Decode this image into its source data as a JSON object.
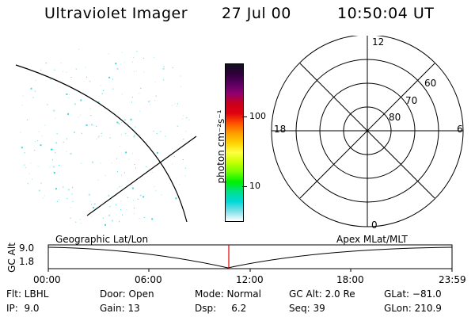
{
  "header": {
    "instrument": "Ultraviolet Imager",
    "date": "27 Jul 00",
    "time": "10:50:04 UT"
  },
  "colorbar": {
    "units": "photon cm⁻²s⁻¹",
    "tick_labels": [
      "100",
      "10"
    ],
    "colors": [
      "#101020",
      "#30003a",
      "#5a0060",
      "#900070",
      "#c8001c",
      "#e00010",
      "#ff5000",
      "#ff9a00",
      "#ffd000",
      "#ffff40",
      "#c8ff00",
      "#70ff00",
      "#00f000",
      "#00e08a",
      "#00d8d8",
      "#80e0e8",
      "#ffffff"
    ]
  },
  "polar_plot": {
    "top_label": "12",
    "bottom_label": "0",
    "left_label": "18",
    "right_label": "6",
    "lat_labels": [
      "60",
      "70",
      "80"
    ]
  },
  "timeline": {
    "left_title": "Geographic Lat/Lon",
    "right_title": "Apex MLat/MLT",
    "yaxis_label": "GC Alt",
    "ytick_top": "9.0",
    "ytick_bottom": "1.8",
    "xticks": [
      "00:00",
      "06:00",
      "12:00",
      "18:00",
      "23:59"
    ],
    "marker_color": "#e00000"
  },
  "info": {
    "flt": "Flt: LBHL",
    "ip": "IP:  9.0",
    "door": "Door: Open",
    "gain": "Gain: 13",
    "mode": "Mode: Normal",
    "dsp": "Dsp:     6.2",
    "gcalt": "GC Alt: 2.0 Re",
    "seq": "Seq: 39",
    "glat": "GLat: −81.0",
    "glon": "GLon: 210.9"
  }
}
